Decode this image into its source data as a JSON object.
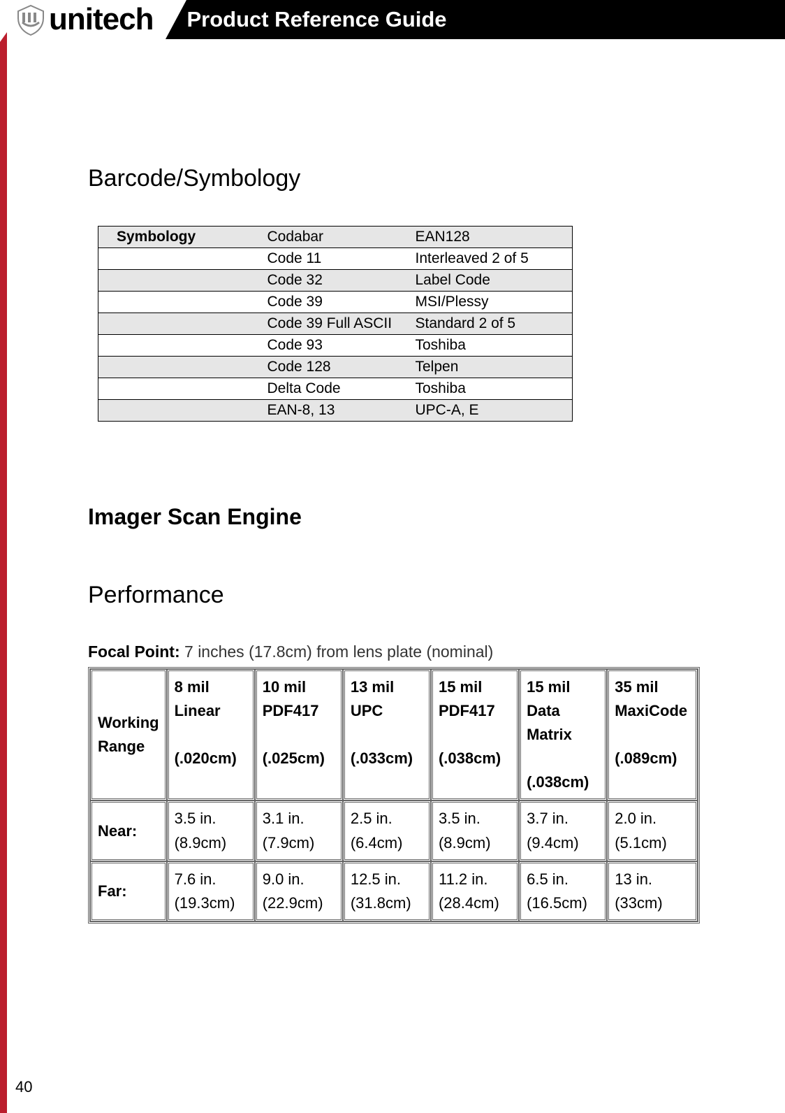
{
  "header": {
    "brand": "unitech",
    "title": "Product Reference Guide"
  },
  "accent_color": "#bb1e2d",
  "section_barcode": "Barcode/Symbology",
  "symb_header": "Symbology",
  "symb_rows": [
    {
      "c1": "Codabar",
      "c2": "EAN128",
      "shade": "g",
      "first": true
    },
    {
      "c1": "Code 11",
      "c2": "Interleaved 2 of 5",
      "shade": "w"
    },
    {
      "c1": "Code 32",
      "c2": "Label Code",
      "shade": "g"
    },
    {
      "c1": "Code 39",
      "c2": "MSI/Plessy",
      "shade": "w"
    },
    {
      "c1": "Code 39 Full ASCII",
      "c2": "Standard 2 of 5",
      "shade": "g"
    },
    {
      "c1": "Code 93",
      "c2": "Toshiba",
      "shade": "w"
    },
    {
      "c1": "Code 128",
      "c2": "Telpen",
      "shade": "g"
    },
    {
      "c1": "Delta Code",
      "c2": "Toshiba",
      "shade": "w"
    },
    {
      "c1": "EAN-8, 13",
      "c2": "UPC-A, E",
      "shade": "g"
    }
  ],
  "section_imager": "Imager Scan Engine",
  "section_perf": "Performance",
  "focal_label": "Focal Point:",
  "focal_text": "7 inches (17.8cm) from lens plate (nominal)",
  "perf": {
    "row_label": "Working Range",
    "near_label": "Near:",
    "far_label": "Far:",
    "cols": [
      {
        "h1": "8 mil Linear",
        "h2": "(.020cm)",
        "near": "3.5 in. (8.9cm)",
        "far": "7.6 in. (19.3cm)"
      },
      {
        "h1": "10 mil PDF417",
        "h2": "(.025cm)",
        "near": "3.1 in. (7.9cm)",
        "far": "9.0 in. (22.9cm)"
      },
      {
        "h1": "13 mil UPC",
        "h2": "(.033cm)",
        "near": "2.5 in. (6.4cm)",
        "far": "12.5 in. (31.8cm)"
      },
      {
        "h1": "15 mil PDF417",
        "h2": "(.038cm)",
        "near": "3.5 in. (8.9cm)",
        "far": "11.2 in. (28.4cm)"
      },
      {
        "h1": "15 mil Data Matrix",
        "h2": "(.038cm)",
        "near": "3.7 in. (9.4cm)",
        "far": "6.5 in. (16.5cm)"
      },
      {
        "h1": "35 mil MaxiCode",
        "h2": "(.089cm)",
        "near": " 2.0 in. (5.1cm)",
        "far": "13 in. (33cm)"
      }
    ]
  },
  "page_number": "40"
}
